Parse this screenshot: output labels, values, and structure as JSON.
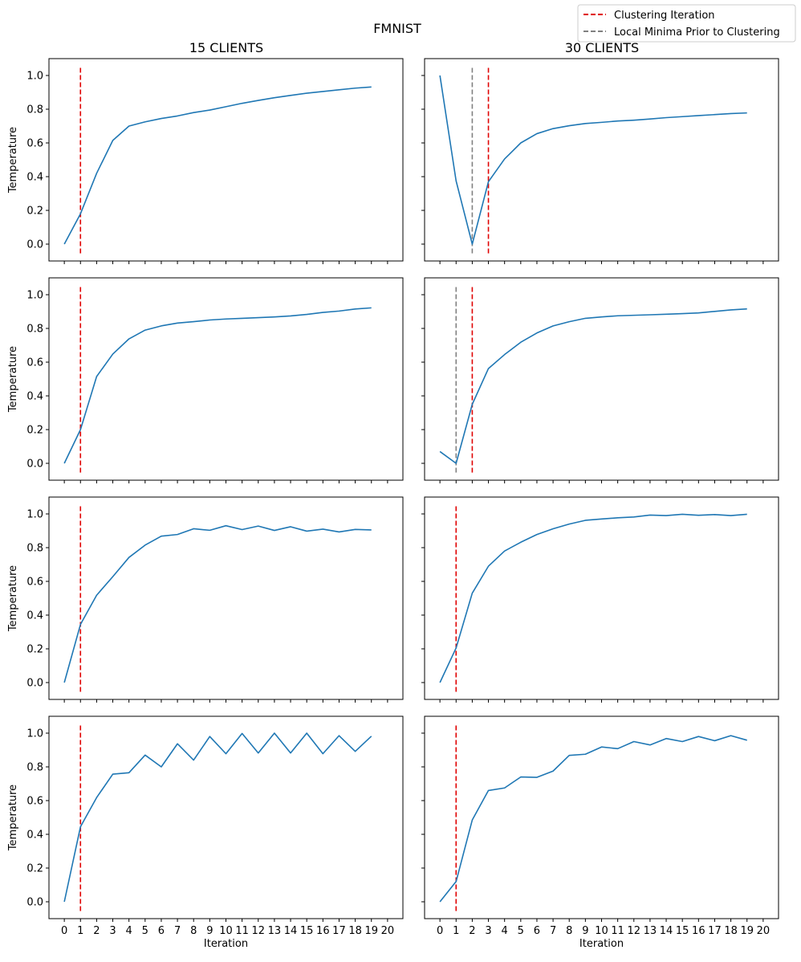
{
  "figure": {
    "suptitle": "FMNIST",
    "column_titles": [
      "15 CLIENTS",
      "30 CLIENTS"
    ],
    "legend": {
      "placement": "top-right",
      "entries": [
        {
          "label": "Clustering Iteration",
          "color": "#e00000",
          "style": "dashed"
        },
        {
          "label": "Local Minima Prior to Clustering",
          "color": "#808080",
          "style": "dashed"
        }
      ]
    },
    "series_color": "#1f77b4"
  },
  "chart_data": [
    {
      "type": "line",
      "row": 0,
      "col": 0,
      "ylabel": "Temperature",
      "xlabel": "",
      "xlim": [
        -0.95,
        20.95
      ],
      "ylim": [
        -0.1,
        1.1
      ],
      "xticks": [
        "0",
        "1",
        "2",
        "3",
        "4",
        "5",
        "6",
        "7",
        "8",
        "9",
        "10",
        "11",
        "12",
        "13",
        "14",
        "15",
        "16",
        "17",
        "18",
        "19",
        "20"
      ],
      "yticks": [
        "0.0",
        "0.2",
        "0.4",
        "0.6",
        "0.8",
        "1.0"
      ],
      "show_xtick_labels": false,
      "show_ytick_labels": true,
      "x": [
        0,
        1,
        2,
        3,
        4,
        5,
        6,
        7,
        8,
        9,
        10,
        11,
        12,
        13,
        14,
        15,
        16,
        17,
        18,
        19
      ],
      "values": [
        0.0,
        0.18,
        0.42,
        0.615,
        0.7,
        0.725,
        0.745,
        0.76,
        0.78,
        0.795,
        0.815,
        0.835,
        0.852,
        0.868,
        0.882,
        0.895,
        0.905,
        0.915,
        0.925,
        0.932
      ],
      "clustering_iteration": 1,
      "local_minima": null
    },
    {
      "type": "line",
      "row": 0,
      "col": 1,
      "ylabel": "",
      "xlabel": "",
      "xlim": [
        -0.95,
        20.95
      ],
      "ylim": [
        -0.1,
        1.1
      ],
      "xticks": [
        "0",
        "1",
        "2",
        "3",
        "4",
        "5",
        "6",
        "7",
        "8",
        "9",
        "10",
        "11",
        "12",
        "13",
        "14",
        "15",
        "16",
        "17",
        "18",
        "19",
        "20"
      ],
      "yticks": [
        "0.0",
        "0.2",
        "0.4",
        "0.6",
        "0.8",
        "1.0"
      ],
      "show_xtick_labels": false,
      "show_ytick_labels": false,
      "x": [
        0,
        1,
        2,
        3,
        4,
        5,
        6,
        7,
        8,
        9,
        10,
        11,
        12,
        13,
        14,
        15,
        16,
        17,
        18,
        19
      ],
      "values": [
        1.0,
        0.375,
        0.0,
        0.37,
        0.505,
        0.6,
        0.655,
        0.685,
        0.702,
        0.715,
        0.722,
        0.73,
        0.735,
        0.742,
        0.75,
        0.756,
        0.762,
        0.768,
        0.774,
        0.778
      ],
      "clustering_iteration": 3,
      "local_minima": 2
    },
    {
      "type": "line",
      "row": 1,
      "col": 0,
      "ylabel": "Temperature",
      "xlabel": "",
      "xlim": [
        -0.95,
        20.95
      ],
      "ylim": [
        -0.1,
        1.1
      ],
      "xticks": [
        "0",
        "1",
        "2",
        "3",
        "4",
        "5",
        "6",
        "7",
        "8",
        "9",
        "10",
        "11",
        "12",
        "13",
        "14",
        "15",
        "16",
        "17",
        "18",
        "19",
        "20"
      ],
      "yticks": [
        "0.0",
        "0.2",
        "0.4",
        "0.6",
        "0.8",
        "1.0"
      ],
      "show_xtick_labels": false,
      "show_ytick_labels": true,
      "x": [
        0,
        1,
        2,
        3,
        4,
        5,
        6,
        7,
        8,
        9,
        10,
        11,
        12,
        13,
        14,
        15,
        16,
        17,
        18,
        19
      ],
      "values": [
        0.0,
        0.2,
        0.515,
        0.648,
        0.738,
        0.79,
        0.815,
        0.832,
        0.84,
        0.85,
        0.856,
        0.86,
        0.864,
        0.868,
        0.874,
        0.883,
        0.895,
        0.903,
        0.915,
        0.922
      ],
      "clustering_iteration": 1,
      "local_minima": null
    },
    {
      "type": "line",
      "row": 1,
      "col": 1,
      "ylabel": "",
      "xlabel": "",
      "xlim": [
        -0.95,
        20.95
      ],
      "ylim": [
        -0.1,
        1.1
      ],
      "xticks": [
        "0",
        "1",
        "2",
        "3",
        "4",
        "5",
        "6",
        "7",
        "8",
        "9",
        "10",
        "11",
        "12",
        "13",
        "14",
        "15",
        "16",
        "17",
        "18",
        "19",
        "20"
      ],
      "yticks": [
        "0.0",
        "0.2",
        "0.4",
        "0.6",
        "0.8",
        "1.0"
      ],
      "show_xtick_labels": false,
      "show_ytick_labels": false,
      "x": [
        0,
        1,
        2,
        3,
        4,
        5,
        6,
        7,
        8,
        9,
        10,
        11,
        12,
        13,
        14,
        15,
        16,
        17,
        18,
        19
      ],
      "values": [
        0.07,
        0.0,
        0.35,
        0.562,
        0.645,
        0.718,
        0.773,
        0.815,
        0.84,
        0.86,
        0.868,
        0.875,
        0.878,
        0.881,
        0.884,
        0.888,
        0.892,
        0.901,
        0.91,
        0.916
      ],
      "clustering_iteration": 2,
      "local_minima": 1
    },
    {
      "type": "line",
      "row": 2,
      "col": 0,
      "ylabel": "Temperature",
      "xlabel": "",
      "xlim": [
        -0.95,
        20.95
      ],
      "ylim": [
        -0.1,
        1.1
      ],
      "xticks": [
        "0",
        "1",
        "2",
        "3",
        "4",
        "5",
        "6",
        "7",
        "8",
        "9",
        "10",
        "11",
        "12",
        "13",
        "14",
        "15",
        "16",
        "17",
        "18",
        "19",
        "20"
      ],
      "yticks": [
        "0.0",
        "0.2",
        "0.4",
        "0.6",
        "0.8",
        "1.0"
      ],
      "show_xtick_labels": false,
      "show_ytick_labels": true,
      "x": [
        0,
        1,
        2,
        3,
        4,
        5,
        6,
        7,
        8,
        9,
        10,
        11,
        12,
        13,
        14,
        15,
        16,
        17,
        18,
        19
      ],
      "values": [
        0.0,
        0.345,
        0.518,
        0.628,
        0.742,
        0.815,
        0.868,
        0.878,
        0.912,
        0.903,
        0.93,
        0.907,
        0.928,
        0.902,
        0.924,
        0.898,
        0.91,
        0.893,
        0.908,
        0.905
      ],
      "clustering_iteration": 1,
      "local_minima": null
    },
    {
      "type": "line",
      "row": 2,
      "col": 1,
      "ylabel": "",
      "xlabel": "",
      "xlim": [
        -0.95,
        20.95
      ],
      "ylim": [
        -0.1,
        1.1
      ],
      "xticks": [
        "0",
        "1",
        "2",
        "3",
        "4",
        "5",
        "6",
        "7",
        "8",
        "9",
        "10",
        "11",
        "12",
        "13",
        "14",
        "15",
        "16",
        "17",
        "18",
        "19",
        "20"
      ],
      "yticks": [
        "0.0",
        "0.2",
        "0.4",
        "0.6",
        "0.8",
        "1.0"
      ],
      "show_xtick_labels": false,
      "show_ytick_labels": false,
      "x": [
        0,
        1,
        2,
        3,
        4,
        5,
        6,
        7,
        8,
        9,
        10,
        11,
        12,
        13,
        14,
        15,
        16,
        17,
        18,
        19
      ],
      "values": [
        0.0,
        0.205,
        0.53,
        0.69,
        0.78,
        0.832,
        0.878,
        0.912,
        0.94,
        0.962,
        0.97,
        0.977,
        0.982,
        0.993,
        0.99,
        0.998,
        0.992,
        0.996,
        0.99,
        0.998
      ],
      "clustering_iteration": 1,
      "local_minima": null
    },
    {
      "type": "line",
      "row": 3,
      "col": 0,
      "ylabel": "Temperature",
      "xlabel": "Iteration",
      "xlim": [
        -0.95,
        20.95
      ],
      "ylim": [
        -0.1,
        1.1
      ],
      "xticks": [
        "0",
        "1",
        "2",
        "3",
        "4",
        "5",
        "6",
        "7",
        "8",
        "9",
        "10",
        "11",
        "12",
        "13",
        "14",
        "15",
        "16",
        "17",
        "18",
        "19",
        "20"
      ],
      "yticks": [
        "0.0",
        "0.2",
        "0.4",
        "0.6",
        "0.8",
        "1.0"
      ],
      "show_xtick_labels": true,
      "show_ytick_labels": true,
      "x": [
        0,
        1,
        2,
        3,
        4,
        5,
        6,
        7,
        8,
        9,
        10,
        11,
        12,
        13,
        14,
        15,
        16,
        17,
        18,
        19
      ],
      "values": [
        0.0,
        0.445,
        0.618,
        0.757,
        0.765,
        0.87,
        0.8,
        0.937,
        0.84,
        0.98,
        0.878,
        0.998,
        0.882,
        1.0,
        0.882,
        1.0,
        0.878,
        0.985,
        0.892,
        0.982
      ],
      "clustering_iteration": 1,
      "local_minima": null
    },
    {
      "type": "line",
      "row": 3,
      "col": 1,
      "ylabel": "",
      "xlabel": "Iteration",
      "xlim": [
        -0.95,
        20.95
      ],
      "ylim": [
        -0.1,
        1.1
      ],
      "xticks": [
        "0",
        "1",
        "2",
        "3",
        "4",
        "5",
        "6",
        "7",
        "8",
        "9",
        "10",
        "11",
        "12",
        "13",
        "14",
        "15",
        "16",
        "17",
        "18",
        "19",
        "20"
      ],
      "yticks": [
        "0.0",
        "0.2",
        "0.4",
        "0.6",
        "0.8",
        "1.0"
      ],
      "show_xtick_labels": true,
      "show_ytick_labels": false,
      "x": [
        0,
        1,
        2,
        3,
        4,
        5,
        6,
        7,
        8,
        9,
        10,
        11,
        12,
        13,
        14,
        15,
        16,
        17,
        18,
        19
      ],
      "values": [
        0.0,
        0.12,
        0.485,
        0.66,
        0.675,
        0.74,
        0.738,
        0.775,
        0.868,
        0.875,
        0.918,
        0.908,
        0.95,
        0.93,
        0.968,
        0.95,
        0.98,
        0.955,
        0.985,
        0.958
      ],
      "clustering_iteration": 1,
      "local_minima": null
    }
  ]
}
